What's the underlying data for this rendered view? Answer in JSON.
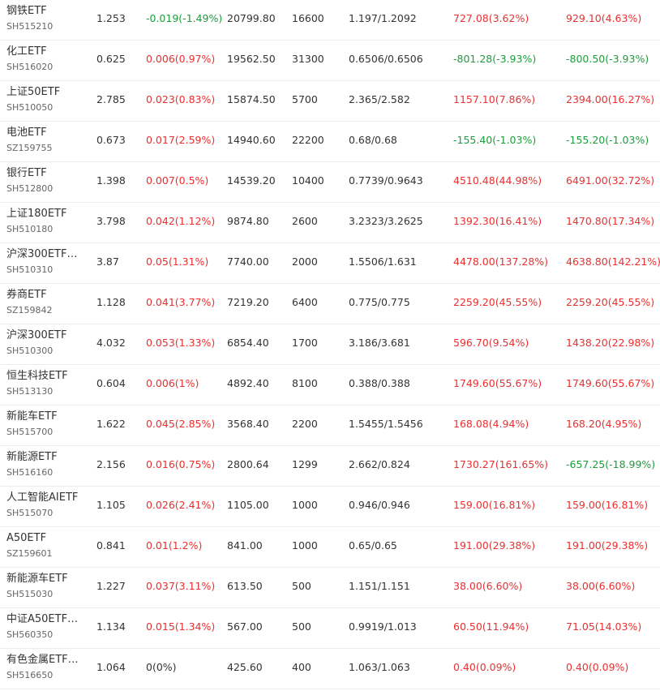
{
  "holdings": [
    {
      "name": "钢铁ETF",
      "code": "SH515210",
      "price": "1.253",
      "change": "-0.019(-1.49%)",
      "change_dir": "down",
      "market_value": "20799.80",
      "quantity": "16600",
      "cost": "1.197/1.2092",
      "pnl": "727.08(3.62%)",
      "pnl_dir": "up",
      "total_pnl": "929.10(4.63%)",
      "total_dir": "up"
    },
    {
      "name": "化工ETF",
      "code": "SH516020",
      "price": "0.625",
      "change": "0.006(0.97%)",
      "change_dir": "up",
      "market_value": "19562.50",
      "quantity": "31300",
      "cost": "0.6506/0.6506",
      "pnl": "-801.28(-3.93%)",
      "pnl_dir": "down",
      "total_pnl": "-800.50(-3.93%)",
      "total_dir": "down"
    },
    {
      "name": "上证50ETF",
      "code": "SH510050",
      "price": "2.785",
      "change": "0.023(0.83%)",
      "change_dir": "up",
      "market_value": "15874.50",
      "quantity": "5700",
      "cost": "2.365/2.582",
      "pnl": "1157.10(7.86%)",
      "pnl_dir": "up",
      "total_pnl": "2394.00(16.27%)",
      "total_dir": "up"
    },
    {
      "name": "电池ETF",
      "code": "SZ159755",
      "price": "0.673",
      "change": "0.017(2.59%)",
      "change_dir": "up",
      "market_value": "14940.60",
      "quantity": "22200",
      "cost": "0.68/0.68",
      "pnl": "-155.40(-1.03%)",
      "pnl_dir": "down",
      "total_pnl": "-155.20(-1.03%)",
      "total_dir": "down"
    },
    {
      "name": "银行ETF",
      "code": "SH512800",
      "price": "1.398",
      "change": "0.007(0.5%)",
      "change_dir": "up",
      "market_value": "14539.20",
      "quantity": "10400",
      "cost": "0.7739/0.9643",
      "pnl": "4510.48(44.98%)",
      "pnl_dir": "up",
      "total_pnl": "6491.00(32.72%)",
      "total_dir": "up"
    },
    {
      "name": "上证180ETF",
      "code": "SH510180",
      "price": "3.798",
      "change": "0.042(1.12%)",
      "change_dir": "up",
      "market_value": "9874.80",
      "quantity": "2600",
      "cost": "3.2323/3.2625",
      "pnl": "1392.30(16.41%)",
      "pnl_dir": "up",
      "total_pnl": "1470.80(17.34%)",
      "total_dir": "up"
    },
    {
      "name": "沪深300ETF…",
      "code": "SH510310",
      "price": "3.87",
      "change": "0.05(1.31%)",
      "change_dir": "up",
      "market_value": "7740.00",
      "quantity": "2000",
      "cost": "1.5506/1.631",
      "pnl": "4478.00(137.28%)",
      "pnl_dir": "up",
      "total_pnl": "4638.80(142.21%)",
      "total_dir": "up"
    },
    {
      "name": "券商ETF",
      "code": "SZ159842",
      "price": "1.128",
      "change": "0.041(3.77%)",
      "change_dir": "up",
      "market_value": "7219.20",
      "quantity": "6400",
      "cost": "0.775/0.775",
      "pnl": "2259.20(45.55%)",
      "pnl_dir": "up",
      "total_pnl": "2259.20(45.55%)",
      "total_dir": "up"
    },
    {
      "name": "沪深300ETF",
      "code": "SH510300",
      "price": "4.032",
      "change": "0.053(1.33%)",
      "change_dir": "up",
      "market_value": "6854.40",
      "quantity": "1700",
      "cost": "3.186/3.681",
      "pnl": "596.70(9.54%)",
      "pnl_dir": "up",
      "total_pnl": "1438.20(22.98%)",
      "total_dir": "up"
    },
    {
      "name": "恒生科技ETF",
      "code": "SH513130",
      "price": "0.604",
      "change": "0.006(1%)",
      "change_dir": "up",
      "market_value": "4892.40",
      "quantity": "8100",
      "cost": "0.388/0.388",
      "pnl": "1749.60(55.67%)",
      "pnl_dir": "up",
      "total_pnl": "1749.60(55.67%)",
      "total_dir": "up"
    },
    {
      "name": "新能车ETF",
      "code": "SH515700",
      "price": "1.622",
      "change": "0.045(2.85%)",
      "change_dir": "up",
      "market_value": "3568.40",
      "quantity": "2200",
      "cost": "1.5455/1.5456",
      "pnl": "168.08(4.94%)",
      "pnl_dir": "up",
      "total_pnl": "168.20(4.95%)",
      "total_dir": "up"
    },
    {
      "name": "新能源ETF",
      "code": "SH516160",
      "price": "2.156",
      "change": "0.016(0.75%)",
      "change_dir": "up",
      "market_value": "2800.64",
      "quantity": "1299",
      "cost": "2.662/0.824",
      "pnl": "1730.27(161.65%)",
      "pnl_dir": "up",
      "total_pnl": "-657.25(-18.99%)",
      "total_dir": "down"
    },
    {
      "name": "人工智能AIETF",
      "code": "SH515070",
      "price": "1.105",
      "change": "0.026(2.41%)",
      "change_dir": "up",
      "market_value": "1105.00",
      "quantity": "1000",
      "cost": "0.946/0.946",
      "pnl": "159.00(16.81%)",
      "pnl_dir": "up",
      "total_pnl": "159.00(16.81%)",
      "total_dir": "up"
    },
    {
      "name": "A50ETF",
      "code": "SZ159601",
      "price": "0.841",
      "change": "0.01(1.2%)",
      "change_dir": "up",
      "market_value": "841.00",
      "quantity": "1000",
      "cost": "0.65/0.65",
      "pnl": "191.00(29.38%)",
      "pnl_dir": "up",
      "total_pnl": "191.00(29.38%)",
      "total_dir": "up"
    },
    {
      "name": "新能源车ETF",
      "code": "SH515030",
      "price": "1.227",
      "change": "0.037(3.11%)",
      "change_dir": "up",
      "market_value": "613.50",
      "quantity": "500",
      "cost": "1.151/1.151",
      "pnl": "38.00(6.60%)",
      "pnl_dir": "up",
      "total_pnl": "38.00(6.60%)",
      "total_dir": "up"
    },
    {
      "name": "中证A50ETF…",
      "code": "SH560350",
      "price": "1.134",
      "change": "0.015(1.34%)",
      "change_dir": "up",
      "market_value": "567.00",
      "quantity": "500",
      "cost": "0.9919/1.013",
      "pnl": "60.50(11.94%)",
      "pnl_dir": "up",
      "total_pnl": "71.05(14.03%)",
      "total_dir": "up"
    },
    {
      "name": "有色金属ETF…",
      "code": "SH516650",
      "price": "1.064",
      "change": "0(0%)",
      "change_dir": "flat",
      "market_value": "425.60",
      "quantity": "400",
      "cost": "1.063/1.063",
      "pnl": "0.40(0.09%)",
      "pnl_dir": "up",
      "total_pnl": "0.40(0.09%)",
      "total_dir": "up"
    }
  ],
  "colors": {
    "up": "#e93030",
    "down": "#1e9c3c",
    "text": "#333333",
    "subtext": "#666666",
    "divider": "#ececec"
  }
}
